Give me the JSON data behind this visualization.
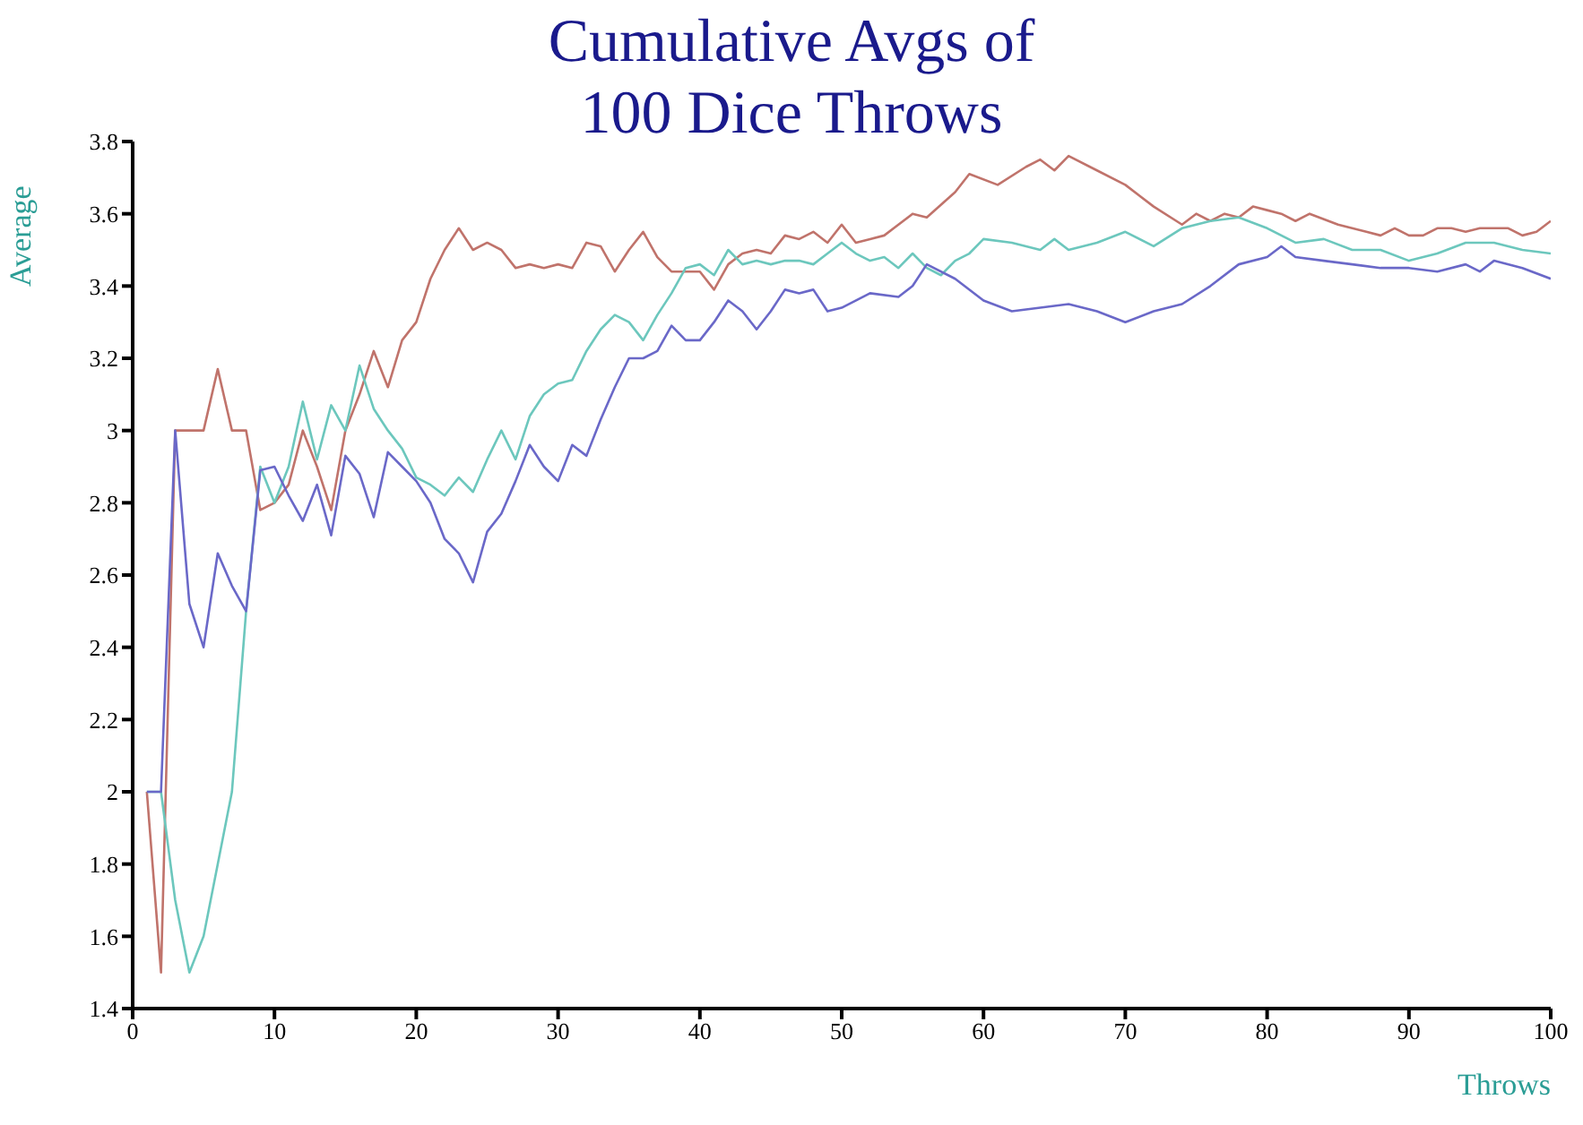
{
  "chart_data": {
    "type": "line",
    "title": "Cumulative Avgs of\n100 Dice Throws",
    "xlabel": "Throws",
    "ylabel": "Average",
    "xlim": [
      0,
      100
    ],
    "xticks": [
      0,
      10,
      20,
      30,
      40,
      50,
      60,
      70,
      80,
      90,
      100
    ],
    "ylim": [
      1.4,
      3.8
    ],
    "yticks": [
      1.4,
      1.6,
      1.8,
      2,
      2.2,
      2.4,
      2.6,
      2.8,
      3,
      3.2,
      3.4,
      3.6,
      3.8
    ],
    "grid": false,
    "marker": "none",
    "line_style": "solid",
    "series": [
      {
        "color": "#c0736b",
        "x": [
          1,
          2,
          3,
          4,
          5,
          6,
          7,
          8,
          9,
          10,
          11,
          12,
          13,
          14,
          15,
          16,
          17,
          18,
          19,
          20,
          21,
          22,
          23,
          24,
          25,
          26,
          27,
          28,
          29,
          30,
          31,
          32,
          33,
          34,
          35,
          36,
          37,
          38,
          39,
          40,
          41,
          42,
          43,
          44,
          45,
          46,
          47,
          48,
          49,
          50,
          51,
          52,
          53,
          55,
          56,
          58,
          59,
          61,
          63,
          64,
          65,
          66,
          68,
          70,
          72,
          74,
          75,
          76,
          77,
          78,
          79,
          80,
          81,
          82,
          83,
          85,
          86,
          87,
          88,
          89,
          90,
          91,
          92,
          93,
          94,
          95,
          96,
          97,
          98,
          99,
          100
        ],
        "values": [
          2.0,
          1.5,
          3.0,
          3.0,
          3.0,
          3.17,
          3.0,
          3.0,
          2.78,
          2.8,
          2.85,
          3.0,
          2.9,
          2.78,
          3.0,
          3.1,
          3.22,
          3.12,
          3.25,
          3.3,
          3.42,
          3.5,
          3.56,
          3.5,
          3.52,
          3.5,
          3.45,
          3.46,
          3.45,
          3.46,
          3.45,
          3.52,
          3.51,
          3.44,
          3.5,
          3.55,
          3.48,
          3.44,
          3.44,
          3.44,
          3.39,
          3.46,
          3.49,
          3.5,
          3.49,
          3.54,
          3.53,
          3.55,
          3.52,
          3.57,
          3.52,
          3.53,
          3.54,
          3.6,
          3.59,
          3.66,
          3.71,
          3.68,
          3.73,
          3.75,
          3.72,
          3.76,
          3.72,
          3.68,
          3.62,
          3.57,
          3.6,
          3.58,
          3.6,
          3.59,
          3.62,
          3.61,
          3.6,
          3.58,
          3.6,
          3.57,
          3.56,
          3.55,
          3.54,
          3.56,
          3.54,
          3.54,
          3.56,
          3.56,
          3.55,
          3.56,
          3.56,
          3.56,
          3.54,
          3.55,
          3.58
        ]
      },
      {
        "color": "#6cc7bd",
        "x": [
          1,
          2,
          3,
          4,
          5,
          6,
          7,
          8,
          9,
          10,
          11,
          12,
          13,
          14,
          15,
          16,
          17,
          18,
          19,
          20,
          21,
          22,
          23,
          24,
          25,
          26,
          27,
          28,
          29,
          30,
          31,
          32,
          33,
          34,
          35,
          36,
          37,
          38,
          39,
          40,
          41,
          42,
          43,
          44,
          45,
          46,
          47,
          48,
          49,
          50,
          51,
          52,
          53,
          54,
          55,
          56,
          57,
          58,
          59,
          60,
          62,
          64,
          65,
          66,
          68,
          70,
          72,
          74,
          76,
          78,
          80,
          82,
          84,
          86,
          88,
          90,
          92,
          94,
          96,
          98,
          100
        ],
        "values": [
          2.0,
          2.0,
          1.7,
          1.5,
          1.6,
          1.8,
          2.0,
          2.5,
          2.9,
          2.8,
          2.9,
          3.08,
          2.92,
          3.07,
          3.0,
          3.18,
          3.06,
          3.0,
          2.95,
          2.87,
          2.85,
          2.82,
          2.87,
          2.83,
          2.92,
          3.0,
          2.92,
          3.04,
          3.1,
          3.13,
          3.14,
          3.22,
          3.28,
          3.32,
          3.3,
          3.25,
          3.32,
          3.38,
          3.45,
          3.46,
          3.43,
          3.5,
          3.46,
          3.47,
          3.46,
          3.47,
          3.47,
          3.46,
          3.49,
          3.52,
          3.49,
          3.47,
          3.48,
          3.45,
          3.49,
          3.45,
          3.43,
          3.47,
          3.49,
          3.53,
          3.52,
          3.5,
          3.53,
          3.5,
          3.52,
          3.55,
          3.51,
          3.56,
          3.58,
          3.59,
          3.56,
          3.52,
          3.53,
          3.5,
          3.5,
          3.47,
          3.49,
          3.52,
          3.52,
          3.5,
          3.49
        ]
      },
      {
        "color": "#6a68c8",
        "x": [
          1,
          2,
          3,
          4,
          5,
          6,
          7,
          8,
          9,
          10,
          11,
          12,
          13,
          14,
          15,
          16,
          17,
          18,
          19,
          20,
          21,
          22,
          23,
          24,
          25,
          26,
          27,
          28,
          29,
          30,
          31,
          32,
          33,
          34,
          35,
          36,
          37,
          38,
          39,
          40,
          41,
          42,
          43,
          44,
          45,
          46,
          47,
          48,
          49,
          50,
          52,
          54,
          55,
          56,
          58,
          60,
          62,
          64,
          66,
          68,
          70,
          72,
          74,
          76,
          78,
          80,
          81,
          82,
          84,
          86,
          88,
          90,
          92,
          94,
          95,
          96,
          98,
          100
        ],
        "values": [
          2.0,
          2.0,
          3.0,
          2.52,
          2.4,
          2.66,
          2.57,
          2.5,
          2.89,
          2.9,
          2.82,
          2.75,
          2.85,
          2.71,
          2.93,
          2.88,
          2.76,
          2.94,
          2.9,
          2.86,
          2.8,
          2.7,
          2.66,
          2.58,
          2.72,
          2.77,
          2.86,
          2.96,
          2.9,
          2.86,
          2.96,
          2.93,
          3.03,
          3.12,
          3.2,
          3.2,
          3.22,
          3.29,
          3.25,
          3.25,
          3.3,
          3.36,
          3.33,
          3.28,
          3.33,
          3.39,
          3.38,
          3.39,
          3.33,
          3.34,
          3.38,
          3.37,
          3.4,
          3.46,
          3.42,
          3.36,
          3.33,
          3.34,
          3.35,
          3.33,
          3.3,
          3.33,
          3.35,
          3.4,
          3.46,
          3.48,
          3.51,
          3.48,
          3.47,
          3.46,
          3.45,
          3.45,
          3.44,
          3.46,
          3.44,
          3.47,
          3.45,
          3.42
        ]
      }
    ]
  }
}
